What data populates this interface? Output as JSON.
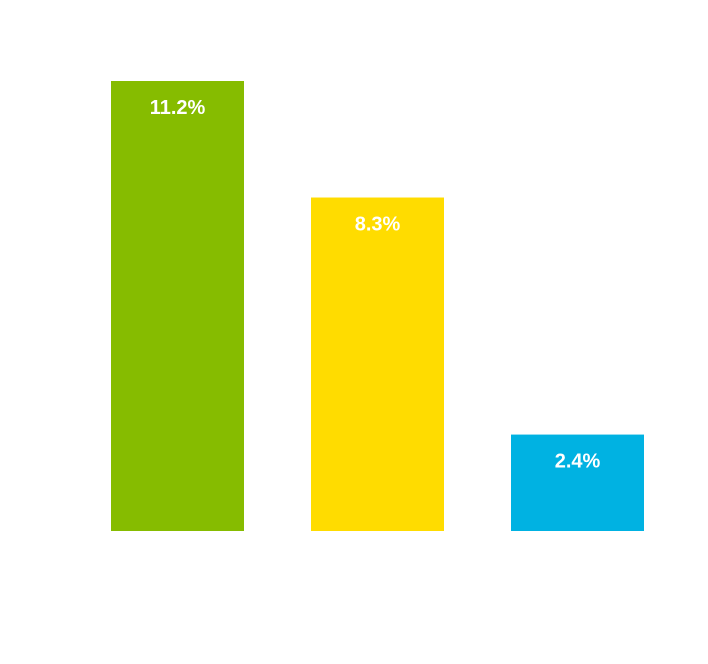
{
  "chart_data": {
    "type": "bar",
    "title": "",
    "xlabel": "",
    "ylabel": "",
    "categories": [
      "",
      "",
      ""
    ],
    "values": [
      11.2,
      8.3,
      2.4
    ],
    "labels": [
      "11.2%",
      "8.3%",
      "2.4%"
    ],
    "colors": [
      "#86bc00",
      "#ffdc00",
      "#00b2e2"
    ],
    "ylim": [
      0,
      12.5
    ],
    "grid": false,
    "legend": "none"
  }
}
